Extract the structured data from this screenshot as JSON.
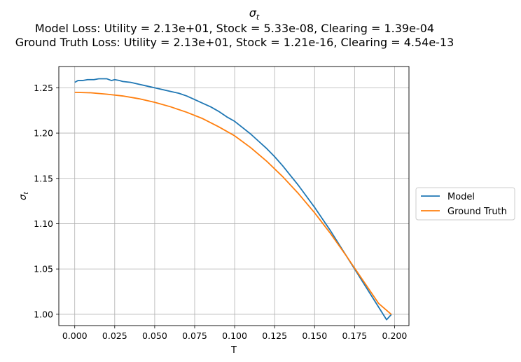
{
  "chart_data": {
    "type": "line",
    "title_symbol": "σ",
    "title_subscript": "t",
    "title_line2": "Model Loss: Utility = 2.13e+01, Stock = 5.33e-08, Clearing = 1.39e-04",
    "title_line3": "Ground Truth Loss: Utility = 2.13e+01, Stock = 1.21e-16, Clearing = 4.54e-13",
    "xlabel": "T",
    "ylabel_symbol": "σ",
    "ylabel_subscript": "t",
    "xlim": [
      -0.00995,
      0.209
    ],
    "ylim": [
      0.9875,
      1.2735
    ],
    "x_ticks": [
      0.0,
      0.025,
      0.05,
      0.075,
      0.1,
      0.125,
      0.15,
      0.175,
      0.2
    ],
    "x_tick_labels": [
      "0.000",
      "0.025",
      "0.050",
      "0.075",
      "0.100",
      "0.125",
      "0.150",
      "0.175",
      "0.200"
    ],
    "y_ticks": [
      1.0,
      1.05,
      1.1,
      1.15,
      1.2,
      1.25
    ],
    "y_tick_labels": [
      "1.00",
      "1.05",
      "1.10",
      "1.15",
      "1.20",
      "1.25"
    ],
    "grid": true,
    "legend_position": "right-outside",
    "series": [
      {
        "name": "Model",
        "color": "#1f77b4",
        "x": [
          0.0,
          0.002,
          0.005,
          0.008,
          0.01,
          0.012,
          0.015,
          0.018,
          0.02,
          0.023,
          0.025,
          0.028,
          0.03,
          0.035,
          0.04,
          0.045,
          0.05,
          0.055,
          0.06,
          0.065,
          0.07,
          0.075,
          0.08,
          0.085,
          0.09,
          0.095,
          0.1,
          0.105,
          0.11,
          0.115,
          0.12,
          0.125,
          0.13,
          0.135,
          0.14,
          0.145,
          0.15,
          0.155,
          0.16,
          0.165,
          0.17,
          0.175,
          0.18,
          0.185,
          0.19,
          0.195,
          0.198
        ],
        "y": [
          1.256,
          1.258,
          1.258,
          1.259,
          1.259,
          1.259,
          1.26,
          1.26,
          1.26,
          1.258,
          1.259,
          1.258,
          1.257,
          1.256,
          1.254,
          1.252,
          1.25,
          1.248,
          1.246,
          1.244,
          1.241,
          1.237,
          1.233,
          1.229,
          1.224,
          1.218,
          1.213,
          1.206,
          1.199,
          1.191,
          1.183,
          1.174,
          1.164,
          1.153,
          1.142,
          1.13,
          1.118,
          1.105,
          1.092,
          1.078,
          1.064,
          1.05,
          1.036,
          1.022,
          1.008,
          0.994,
          0.9998
        ]
      },
      {
        "name": "Ground Truth",
        "color": "#ff7f0e",
        "x": [
          0.0,
          0.01,
          0.02,
          0.03,
          0.04,
          0.05,
          0.06,
          0.07,
          0.08,
          0.09,
          0.1,
          0.11,
          0.12,
          0.13,
          0.14,
          0.15,
          0.16,
          0.17,
          0.18,
          0.19,
          0.198
        ],
        "y": [
          1.245,
          1.2445,
          1.243,
          1.241,
          1.238,
          1.234,
          1.229,
          1.223,
          1.216,
          1.207,
          1.197,
          1.184,
          1.169,
          1.152,
          1.133,
          1.112,
          1.089,
          1.064,
          1.038,
          1.012,
          0.9998
        ]
      }
    ]
  }
}
